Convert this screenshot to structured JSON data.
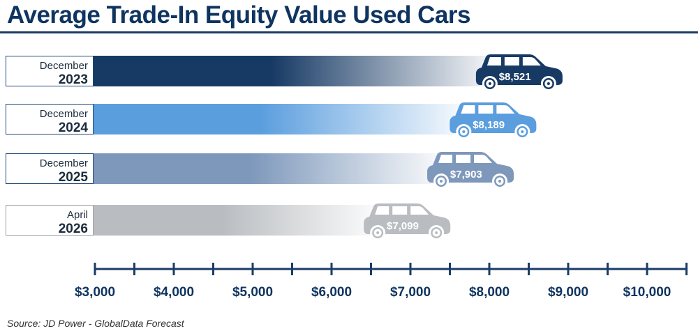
{
  "title": "Average Trade-In Equity Value Used Cars",
  "source": "Source:  JD Power - GlobalData Forecast",
  "colors": {
    "title": "#0f3460",
    "axis": "#1a3c66",
    "label_border": "#1e4878"
  },
  "chart_data": {
    "type": "bar",
    "orientation": "horizontal",
    "title": "Average Trade-In Equity Value Used Cars",
    "categories": [
      {
        "line1": "December",
        "line2": "2023"
      },
      {
        "line1": "December",
        "line2": "2024"
      },
      {
        "line1": "December",
        "line2": "2025"
      },
      {
        "line1": "April",
        "line2": "2026"
      }
    ],
    "values": [
      8521,
      8189,
      7903,
      7099
    ],
    "value_labels": [
      "$8,521",
      "$8,189",
      "$7,903",
      "$7,099"
    ],
    "bar_colors": [
      "#173a64",
      "#5b9ede",
      "#7e98bb",
      "#b9bdc1"
    ],
    "xlim": [
      3000,
      10500
    ],
    "x_ticks": [
      3000,
      4000,
      5000,
      6000,
      7000,
      8000,
      9000,
      10000
    ],
    "x_tick_labels": [
      "$3,000",
      "$4,000",
      "$5,000",
      "$6,000",
      "$7,000",
      "$8,000",
      "$9,000",
      "$10,000"
    ],
    "grid": false,
    "legend": "none"
  }
}
